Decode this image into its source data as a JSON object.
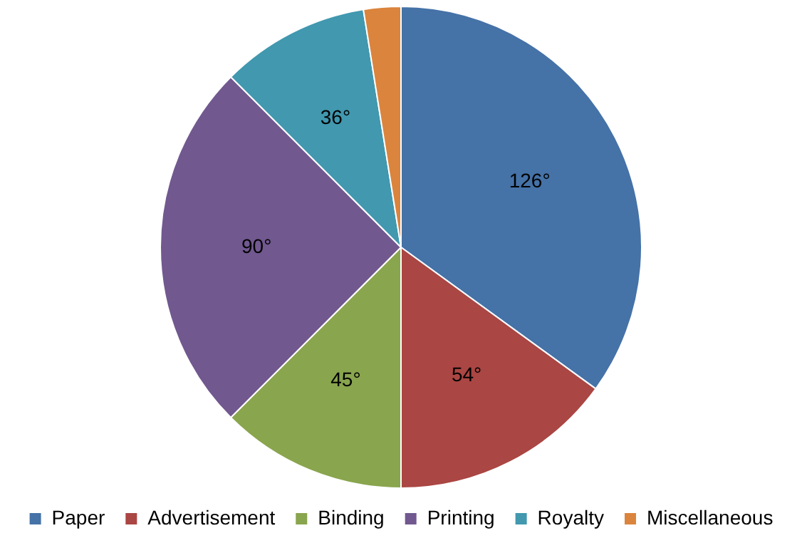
{
  "chart_data": {
    "type": "pie",
    "categories": [
      "Paper",
      "Advertisement",
      "Binding",
      "Printing",
      "Royalty",
      "Miscellaneous"
    ],
    "values": [
      126,
      54,
      45,
      90,
      36,
      9
    ],
    "colors": [
      "#4572a7",
      "#aa4643",
      "#89a54e",
      "#71588f",
      "#4198af",
      "#db843d"
    ],
    "value_labels": [
      "126°",
      "54°",
      "45°",
      "90°",
      "36°",
      null
    ],
    "legend": "bottom"
  }
}
